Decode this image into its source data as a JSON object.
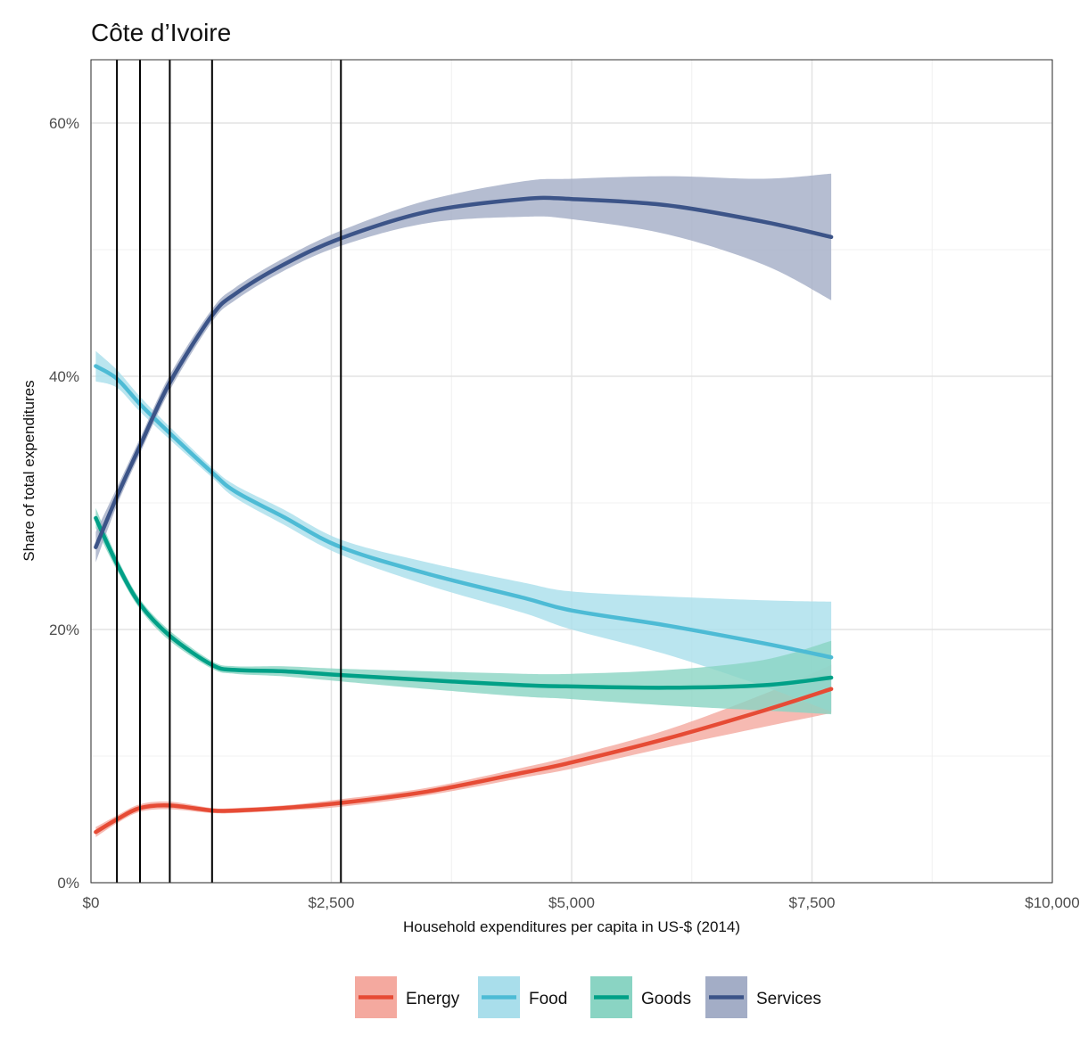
{
  "chart_data": {
    "type": "line",
    "title": "Côte d’Ivoire",
    "xlabel": "Household expenditures per capita in US-$ (2014)",
    "ylabel": "Share of total expenditures",
    "xlim": [
      0,
      10000
    ],
    "ylim": [
      0,
      0.65
    ],
    "x_ticks": [
      0,
      2500,
      5000,
      7500,
      10000
    ],
    "x_tick_labels": [
      "$0",
      "$2,500",
      "$5,000",
      "$7,500",
      "$10,000"
    ],
    "y_ticks": [
      0,
      0.2,
      0.4,
      0.6
    ],
    "y_tick_labels": [
      "0%",
      "20%",
      "40%",
      "60%"
    ],
    "grid": true,
    "legend_position": "bottom",
    "vertical_lines": [
      270,
      510,
      820,
      1260,
      2600
    ],
    "x": [
      50,
      270,
      510,
      820,
      1260,
      1500,
      2000,
      2600,
      3500,
      4500,
      5000,
      6000,
      7000,
      7700
    ],
    "series": [
      {
        "name": "Energy",
        "color": "#E64B35",
        "band_color": "#F4A99F",
        "values": [
          0.04,
          0.05,
          0.059,
          0.061,
          0.057,
          0.057,
          0.059,
          0.063,
          0.072,
          0.087,
          0.095,
          0.114,
          0.136,
          0.153
        ],
        "lower": [
          0.036,
          0.047,
          0.056,
          0.058,
          0.055,
          0.055,
          0.057,
          0.06,
          0.069,
          0.083,
          0.09,
          0.107,
          0.123,
          0.134
        ],
        "upper": [
          0.044,
          0.053,
          0.062,
          0.064,
          0.059,
          0.059,
          0.061,
          0.066,
          0.075,
          0.091,
          0.1,
          0.121,
          0.149,
          0.172
        ]
      },
      {
        "name": "Food",
        "color": "#4DBBD5",
        "band_color": "#A9DEEB",
        "values": [
          0.408,
          0.398,
          0.378,
          0.355,
          0.324,
          0.309,
          0.289,
          0.265,
          0.244,
          0.225,
          0.215,
          0.203,
          0.189,
          0.178
        ],
        "lower": [
          0.396,
          0.391,
          0.372,
          0.35,
          0.32,
          0.304,
          0.283,
          0.259,
          0.235,
          0.213,
          0.2,
          0.18,
          0.155,
          0.135
        ],
        "upper": [
          0.42,
          0.405,
          0.384,
          0.36,
          0.328,
          0.314,
          0.295,
          0.271,
          0.253,
          0.237,
          0.23,
          0.226,
          0.223,
          0.222
        ]
      },
      {
        "name": "Goods",
        "color": "#00A087",
        "band_color": "#8AD4C3",
        "values": [
          0.288,
          0.252,
          0.22,
          0.195,
          0.172,
          0.168,
          0.167,
          0.164,
          0.16,
          0.156,
          0.155,
          0.154,
          0.156,
          0.162
        ],
        "lower": [
          0.28,
          0.247,
          0.216,
          0.191,
          0.169,
          0.165,
          0.163,
          0.159,
          0.153,
          0.147,
          0.145,
          0.14,
          0.136,
          0.133
        ],
        "upper": [
          0.296,
          0.257,
          0.224,
          0.199,
          0.175,
          0.171,
          0.171,
          0.169,
          0.167,
          0.165,
          0.165,
          0.168,
          0.176,
          0.191
        ]
      },
      {
        "name": "Services",
        "color": "#3C5488",
        "band_color": "#A3ADC6",
        "values": [
          0.265,
          0.305,
          0.345,
          0.395,
          0.448,
          0.465,
          0.488,
          0.509,
          0.53,
          0.54,
          0.54,
          0.535,
          0.522,
          0.51
        ],
        "lower": [
          0.253,
          0.298,
          0.339,
          0.389,
          0.443,
          0.46,
          0.483,
          0.503,
          0.521,
          0.526,
          0.524,
          0.512,
          0.488,
          0.46
        ],
        "upper": [
          0.277,
          0.312,
          0.351,
          0.401,
          0.453,
          0.47,
          0.493,
          0.515,
          0.539,
          0.554,
          0.556,
          0.558,
          0.556,
          0.56
        ]
      }
    ]
  }
}
